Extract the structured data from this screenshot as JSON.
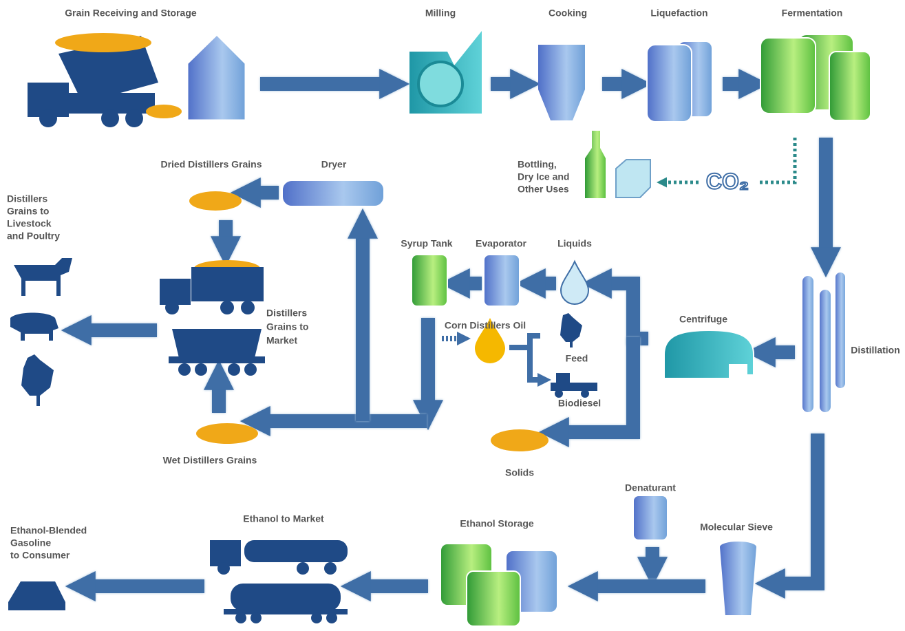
{
  "stages": {
    "grain_receiving": "Grain Receiving and Storage",
    "milling": "Milling",
    "cooking": "Cooking",
    "liquefaction": "Liquefaction",
    "fermentation": "Fermentation",
    "bottling": [
      "Bottling,",
      "Dry Ice and",
      "Other Uses"
    ],
    "co2": "CO₂",
    "dried_grains": "Dried Distillers Grains",
    "dryer": "Dryer",
    "livestock": [
      "Distillers",
      "Grains to",
      "Livestock",
      "and Poultry"
    ],
    "syrup_tank": "Syrup Tank",
    "evaporator": "Evaporator",
    "liquids": "Liquids",
    "corn_oil": "Corn Distillers Oil",
    "feed": "Feed",
    "biodiesel": "Biodiesel",
    "centrifuge": "Centrifuge",
    "distillation": "Distillation",
    "grains_market": [
      "Distillers",
      "Grains to",
      "Market"
    ],
    "wet_grains": "Wet Distillers Grains",
    "solids": "Solids",
    "denaturant": "Denaturant",
    "molecular_sieve": "Molecular Sieve",
    "ethanol_storage": "Ethanol Storage",
    "ethanol_market": "Ethanol to Market",
    "consumer": [
      "Ethanol-Blended",
      "Gasoline",
      "to Consumer"
    ]
  }
}
